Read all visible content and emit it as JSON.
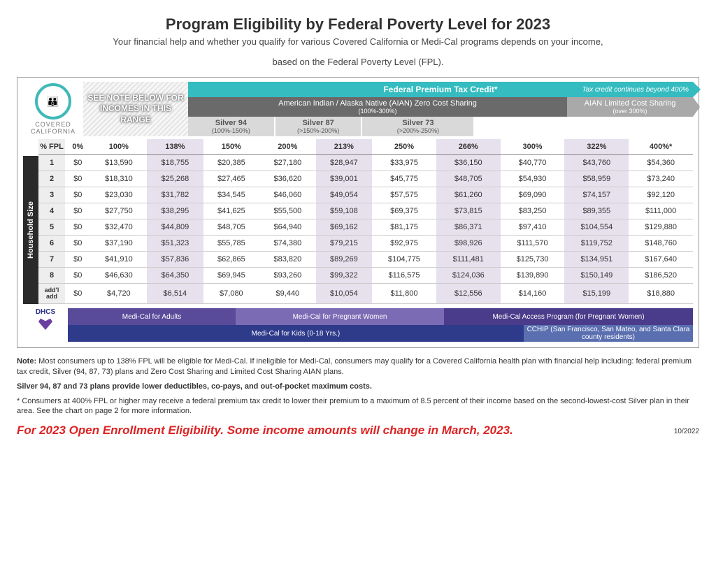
{
  "title": "Program Eligibility by Federal Poverty Level for 2023",
  "subtitle1": "Your financial help and whether you qualify for various Covered California or Medi-Cal programs depends on your income,",
  "subtitle2": "based on the Federal Poverty Level (FPL).",
  "logo": {
    "brand1": "COVERED",
    "brand2": "CALIFORNIA"
  },
  "see_note": "SEE NOTE BELOW FOR INCOMES IN THIS RANGE",
  "teal": {
    "label": "Federal Premium Tax Credit*",
    "continues": "Tax credit continues beyond 400%"
  },
  "aian": {
    "main": "American Indian / Alaska Native (AIAN) Zero Cost Sharing",
    "main_sub": "(100%-300%)",
    "limited": "AIAN Limited Cost Sharing",
    "limited_sub": "(over 300%)"
  },
  "silver": [
    {
      "name": "Silver 94",
      "range": "(100%-150%)"
    },
    {
      "name": "Silver 87",
      "range": "(>150%-200%)"
    },
    {
      "name": "Silver 73",
      "range": "(>200%-250%)"
    }
  ],
  "fpl_header_label": "% FPL",
  "hh_label": "Household Size",
  "columns": [
    "0%",
    "100%",
    "138%",
    "150%",
    "200%",
    "213%",
    "250%",
    "266%",
    "300%",
    "322%",
    "400%*"
  ],
  "shaded_cols": [
    2,
    5,
    7,
    9
  ],
  "rows": [
    {
      "size": "1",
      "v": [
        "$0",
        "$13,590",
        "$18,755",
        "$20,385",
        "$27,180",
        "$28,947",
        "$33,975",
        "$36,150",
        "$40,770",
        "$43,760",
        "$54,360"
      ]
    },
    {
      "size": "2",
      "v": [
        "$0",
        "$18,310",
        "$25,268",
        "$27,465",
        "$36,620",
        "$39,001",
        "$45,775",
        "$48,705",
        "$54,930",
        "$58,959",
        "$73,240"
      ]
    },
    {
      "size": "3",
      "v": [
        "$0",
        "$23,030",
        "$31,782",
        "$34,545",
        "$46,060",
        "$49,054",
        "$57,575",
        "$61,260",
        "$69,090",
        "$74,157",
        "$92,120"
      ]
    },
    {
      "size": "4",
      "v": [
        "$0",
        "$27,750",
        "$38,295",
        "$41,625",
        "$55,500",
        "$59,108",
        "$69,375",
        "$73,815",
        "$83,250",
        "$89,355",
        "$111,000"
      ]
    },
    {
      "size": "5",
      "v": [
        "$0",
        "$32,470",
        "$44,809",
        "$48,705",
        "$64,940",
        "$69,162",
        "$81,175",
        "$86,371",
        "$97,410",
        "$104,554",
        "$129,880"
      ]
    },
    {
      "size": "6",
      "v": [
        "$0",
        "$37,190",
        "$51,323",
        "$55,785",
        "$74,380",
        "$79,215",
        "$92,975",
        "$98,926",
        "$111,570",
        "$119,752",
        "$148,760"
      ]
    },
    {
      "size": "7",
      "v": [
        "$0",
        "$41,910",
        "$57,836",
        "$62,865",
        "$83,820",
        "$89,269",
        "$104,775",
        "$111,481",
        "$125,730",
        "$134,951",
        "$167,640"
      ]
    },
    {
      "size": "8",
      "v": [
        "$0",
        "$46,630",
        "$64,350",
        "$69,945",
        "$93,260",
        "$99,322",
        "$116,575",
        "$124,036",
        "$139,890",
        "$150,149",
        "$186,520"
      ]
    },
    {
      "size": "add'l add",
      "v": [
        "$0",
        "$4,720",
        "$6,514",
        "$7,080",
        "$9,440",
        "$10,054",
        "$11,800",
        "$12,556",
        "$14,160",
        "$15,199",
        "$18,880"
      ]
    }
  ],
  "dhcs": "DHCS",
  "bottom": {
    "adults": "Medi-Cal for Adults",
    "preg": "Medi-Cal for Pregnant Women",
    "access": "Medi-Cal Access Program (for Pregnant Women)",
    "kids": "Medi-Cal for Kids (0-18 Yrs.)",
    "cchip": "CCHIP (San Francisco, San Mateo, and Santa Clara county residents)"
  },
  "notes": {
    "n1": "Note: Most consumers up to 138% FPL will be eligible for Medi-Cal. If ineligible for Medi-Cal, consumers may qualify for a Covered California health plan with financial help including: federal premium tax credit, Silver (94, 87, 73) plans and Zero Cost Sharing and Limited Cost Sharing AIAN plans.",
    "n2": "Silver 94, 87 and 73 plans provide lower deductibles, co-pays, and out-of-pocket maximum costs.",
    "n3": "* Consumers at 400% FPL or higher may receive a federal premium tax credit to lower their premium to a maximum of 8.5 percent of their income based on the second-lowest-cost Silver plan in their area. See the chart on page 2 for more information."
  },
  "red": "For 2023 Open Enrollment Eligibility. Some income amounts will change in March, 2023.",
  "date": "10/2022"
}
